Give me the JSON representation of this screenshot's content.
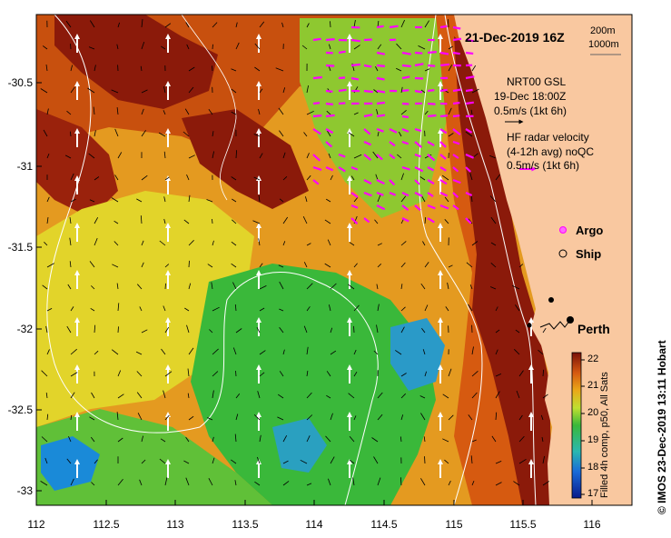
{
  "map": {
    "title": "21-Dec-2019 16Z",
    "scale_bar": {
      "label_1": "200m",
      "label_2": "1000m"
    },
    "legend": {
      "nrt_title": "NRT00 GSL",
      "nrt_date": "19-Dec 18:00Z",
      "nrt_scale": "0.5m/s (1kt 6h)",
      "hf_title": "HF radar velocity",
      "hf_sub": "(4-12h avg) noQC",
      "hf_scale": "0.5m/s (1kt 6h)",
      "argo_label": "Argo",
      "ship_label": "Ship",
      "city_label": "Perth"
    },
    "colorbar": {
      "title": "Filled 4h comp, p50, All Sats",
      "ticks": [
        "22",
        "21",
        "20",
        "19",
        "18",
        "17"
      ]
    },
    "credit": "© IMOS 23-Dec-2019 13:11 Hobart",
    "y_ticks": [
      "-30.5",
      "-31",
      "-31.5",
      "-32",
      "-32.5",
      "-33"
    ],
    "x_ticks": [
      "112",
      "112.5",
      "113",
      "113.5",
      "114",
      "114.5",
      "115",
      "115.5",
      "116"
    ],
    "colors": {
      "land": "#f9c8a0",
      "hot": "#8b1a0a",
      "warm": "#d65a10",
      "mid": "#eaa818",
      "cool": "#cfe030",
      "cold": "#3ab83a",
      "coldest": "#1a8ad8",
      "hf_arrow": "#ff00ff"
    }
  }
}
